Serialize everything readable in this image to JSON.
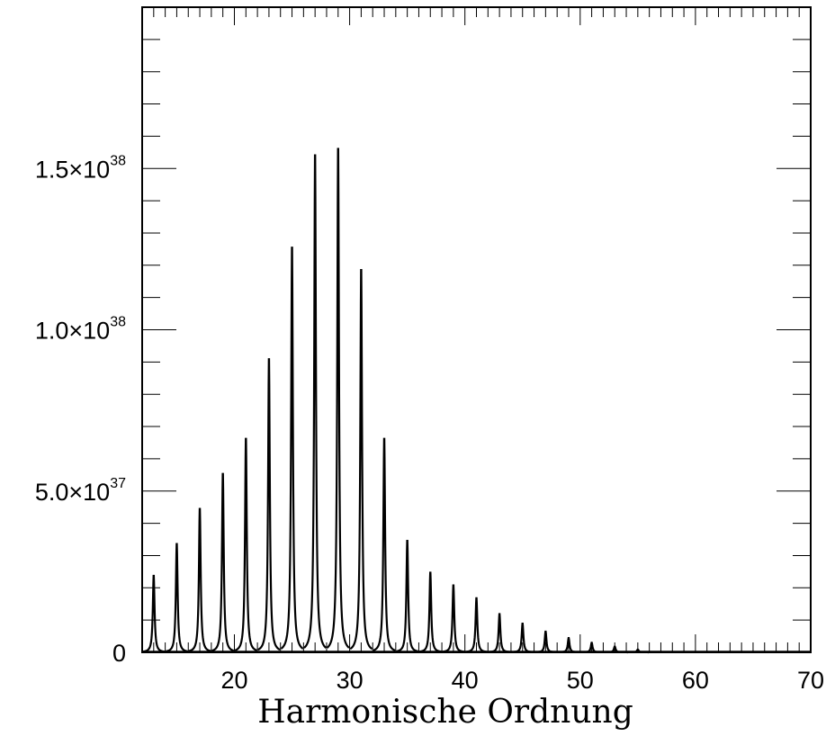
{
  "chart_data": {
    "type": "line",
    "title": "",
    "xlabel": "Harmonische Ordnung",
    "ylabel": "",
    "xlim": [
      12,
      70
    ],
    "ylim": [
      0,
      2e+38
    ],
    "x_ticks": [
      {
        "value": 20,
        "label": "20"
      },
      {
        "value": 30,
        "label": "30"
      },
      {
        "value": 40,
        "label": "40"
      },
      {
        "value": 50,
        "label": "50"
      },
      {
        "value": 60,
        "label": "60"
      },
      {
        "value": 70,
        "label": "70"
      }
    ],
    "y_ticks": [
      {
        "value": 0,
        "mantissa": "0",
        "exponent": ""
      },
      {
        "value": 5e+37,
        "mantissa": "5.0×10",
        "exponent": "37"
      },
      {
        "value": 1e+38,
        "mantissa": "1.0×10",
        "exponent": "38"
      },
      {
        "value": 1.5e+38,
        "mantissa": "1.5×10",
        "exponent": "38"
      }
    ],
    "grid": false,
    "series": [
      {
        "color": "#000000",
        "peaks": [
          {
            "harmonic": 13,
            "value": 2.4e+37
          },
          {
            "harmonic": 15,
            "value": 3.4e+37
          },
          {
            "harmonic": 17,
            "value": 4.5e+37
          },
          {
            "harmonic": 19,
            "value": 5.6e+37
          },
          {
            "harmonic": 21,
            "value": 6.7e+37
          },
          {
            "harmonic": 23,
            "value": 9.2e+37
          },
          {
            "harmonic": 25,
            "value": 1.27e+38
          },
          {
            "harmonic": 27,
            "value": 1.56e+38
          },
          {
            "harmonic": 29,
            "value": 1.58e+38
          },
          {
            "harmonic": 31,
            "value": 1.2e+38
          },
          {
            "harmonic": 33,
            "value": 6.7e+37
          },
          {
            "harmonic": 35,
            "value": 3.5e+37
          },
          {
            "harmonic": 37,
            "value": 2.5e+37
          },
          {
            "harmonic": 39,
            "value": 2.1e+37
          },
          {
            "harmonic": 41,
            "value": 1.7e+37
          },
          {
            "harmonic": 43,
            "value": 1.2e+37
          },
          {
            "harmonic": 45,
            "value": 9e+36
          },
          {
            "harmonic": 47,
            "value": 6.5e+36
          },
          {
            "harmonic": 49,
            "value": 4.5e+36
          },
          {
            "harmonic": 51,
            "value": 3e+36
          },
          {
            "harmonic": 53,
            "value": 1.8e+36
          },
          {
            "harmonic": 55,
            "value": 9e+35
          }
        ]
      }
    ]
  }
}
